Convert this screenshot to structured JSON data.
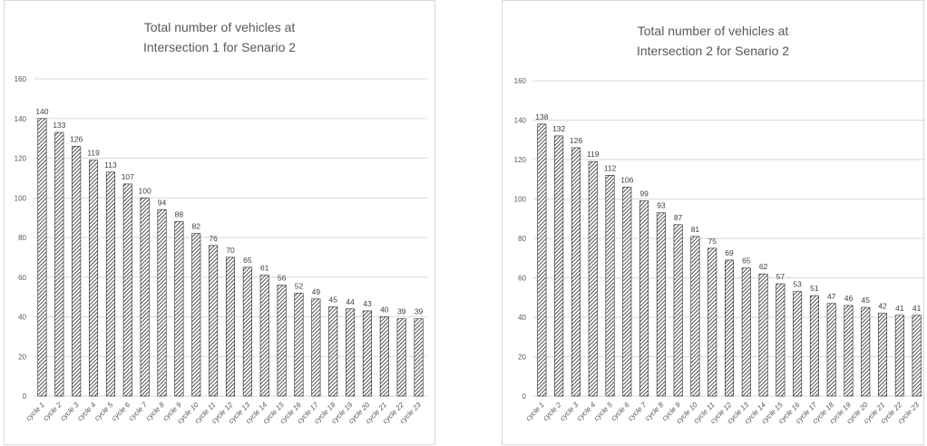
{
  "chart_data": [
    {
      "type": "bar",
      "title_lines": [
        "Total number of vehicles at",
        "Intersection 1 for Senario 2"
      ],
      "categories": [
        "cycle 1",
        "cycle 2",
        "cycle 3",
        "cycle 4",
        "cycle 5",
        "cycle 6",
        "cycle 7",
        "cycle 8",
        "cycle 9",
        "cycle 10",
        "cycle 11",
        "cycle 12",
        "cycle 13",
        "cycle 14",
        "cycle 15",
        "cycle 16",
        "cycle 17",
        "cycle 18",
        "cycle 19",
        "cycle 20",
        "cycle 21",
        "cycle 22",
        "cycle 23"
      ],
      "values": [
        140,
        133,
        126,
        119,
        113,
        107,
        100,
        94,
        88,
        82,
        76,
        70,
        65,
        61,
        56,
        52,
        49,
        45,
        44,
        43,
        40,
        39,
        39
      ],
      "yticks": [
        0,
        20,
        40,
        60,
        80,
        100,
        120,
        140,
        160
      ],
      "ylim": [
        0,
        160
      ],
      "grid": true,
      "legend": "none",
      "bar_pattern": "diagonal-hatch",
      "colors": {
        "bar_fill": "#ffffff",
        "bar_hatch": "#262626",
        "grid": "#d9d9d9",
        "text": "#595959"
      }
    },
    {
      "type": "bar",
      "title_lines": [
        "Total number of vehicles at",
        "Intersection 2 for Senario 2"
      ],
      "categories": [
        "cycle 1",
        "cycle 2",
        "cycle 3",
        "cycle 4",
        "cycle 5",
        "cycle 6",
        "cycle 7",
        "cycle 8",
        "cycle 9",
        "cycle 10",
        "cycle 11",
        "cycle 12",
        "cycle 13",
        "cycle 14",
        "cycle 15",
        "cycle 16",
        "cycle 17",
        "cycle 18",
        "cycle 19",
        "cycle 20",
        "cycle 21",
        "cycle 22",
        "cycle 23"
      ],
      "values": [
        138,
        132,
        126,
        119,
        112,
        106,
        99,
        93,
        87,
        81,
        75,
        69,
        65,
        62,
        57,
        53,
        51,
        47,
        46,
        45,
        42,
        41,
        41
      ],
      "yticks": [
        0,
        20,
        40,
        60,
        80,
        100,
        120,
        140,
        160
      ],
      "ylim": [
        0,
        160
      ],
      "grid": true,
      "legend": "none",
      "bar_pattern": "diagonal-hatch",
      "colors": {
        "bar_fill": "#ffffff",
        "bar_hatch": "#262626",
        "grid": "#d9d9d9",
        "text": "#595959"
      }
    }
  ]
}
